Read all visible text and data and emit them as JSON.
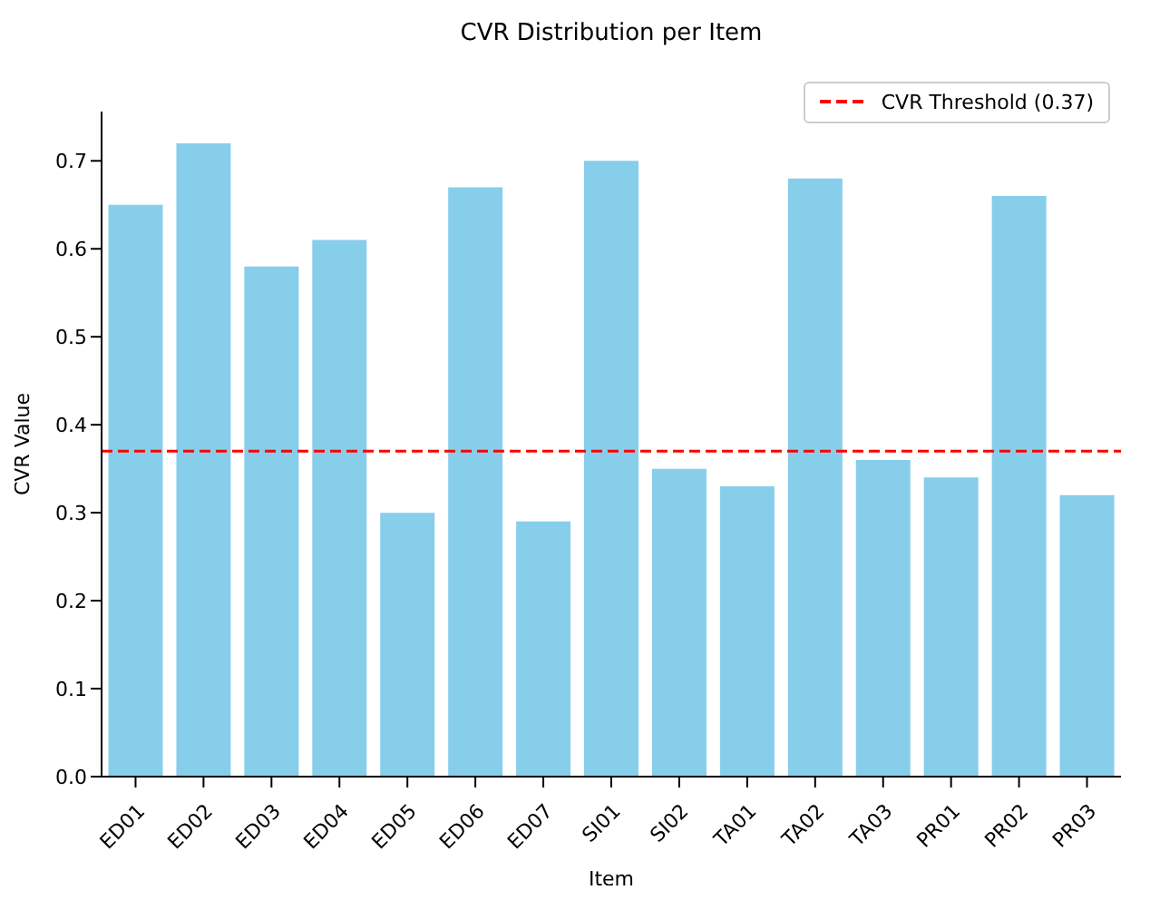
{
  "chart_data": {
    "type": "bar",
    "title": "CVR Distribution per Item",
    "xlabel": "Item",
    "ylabel": "CVR Value",
    "categories": [
      "ED01",
      "ED02",
      "ED03",
      "ED04",
      "ED05",
      "ED06",
      "ED07",
      "SI01",
      "SI02",
      "TA01",
      "TA02",
      "TA03",
      "PR01",
      "PR02",
      "PR03"
    ],
    "values": [
      0.65,
      0.72,
      0.58,
      0.61,
      0.3,
      0.67,
      0.29,
      0.7,
      0.35,
      0.33,
      0.68,
      0.36,
      0.34,
      0.66,
      0.32
    ],
    "color": "#87ceeb",
    "ylim": [
      0,
      0.756
    ],
    "yticks": [
      {
        "value": 0,
        "label": "0.0"
      },
      0.1,
      0.2,
      0.3,
      0.4,
      0.5,
      0.6,
      0.7
    ],
    "ref_lines": [
      {
        "axis": "y",
        "value": 0.37,
        "label": "CVR Threshold (0.37)",
        "color": "#ff0000",
        "line_style": "dashed"
      }
    ],
    "legend": "top right",
    "grid": false
  }
}
